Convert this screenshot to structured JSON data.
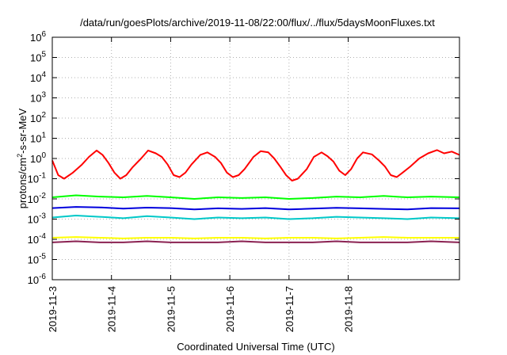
{
  "chart_data": {
    "type": "line",
    "title": "/data/run/goesPlots/archive/2019-11-08/22:00/flux/../flux/5daysMoonFluxes.txt",
    "xlabel": "Coordinated Universal Time (UTC)",
    "ylabel": "protons/cm²-s-sr-MeV",
    "ylabel_parts": {
      "pre": "protons/cm",
      "sup": "2",
      "post": "-s-sr-MeV"
    },
    "x_range_days": [
      0,
      6.88
    ],
    "x_ticks": [
      {
        "day": 0,
        "label": "2019-11-3"
      },
      {
        "day": 1,
        "label": "2019-11-4"
      },
      {
        "day": 2,
        "label": "2019-11-5"
      },
      {
        "day": 3,
        "label": "2019-11-6"
      },
      {
        "day": 4,
        "label": "2019-11-7"
      },
      {
        "day": 5,
        "label": "2019-11-8"
      }
    ],
    "y_scale": "log",
    "ylim": [
      1e-06,
      1000000.0
    ],
    "y_ticks": [
      {
        "exp": "-6",
        "value": 1e-06
      },
      {
        "exp": "-5",
        "value": 1e-05
      },
      {
        "exp": "-4",
        "value": 0.0001
      },
      {
        "exp": "-3",
        "value": 0.001
      },
      {
        "exp": "-2",
        "value": 0.01
      },
      {
        "exp": "-1",
        "value": 0.1
      },
      {
        "exp": "0",
        "value": 1
      },
      {
        "exp": "1",
        "value": 10
      },
      {
        "exp": "2",
        "value": 100
      },
      {
        "exp": "3",
        "value": 1000
      },
      {
        "exp": "4",
        "value": 10000
      },
      {
        "exp": "5",
        "value": 100000
      },
      {
        "exp": "6",
        "value": 1000000
      }
    ],
    "grid": true,
    "series": [
      {
        "color": "#ff0000",
        "x": [
          0,
          0.1,
          0.2,
          0.35,
          0.5,
          0.62,
          0.75,
          0.85,
          0.95,
          1.05,
          1.15,
          1.25,
          1.35,
          1.5,
          1.62,
          1.75,
          1.85,
          1.95,
          2.05,
          2.15,
          2.25,
          2.35,
          2.5,
          2.62,
          2.75,
          2.85,
          2.95,
          3.05,
          3.15,
          3.25,
          3.4,
          3.52,
          3.65,
          3.75,
          3.85,
          3.95,
          4.05,
          4.15,
          4.3,
          4.42,
          4.55,
          4.65,
          4.75,
          4.85,
          4.95,
          5.05,
          5.15,
          5.25,
          5.4,
          5.52,
          5.62,
          5.72,
          5.82,
          5.92,
          6.05,
          6.2,
          6.35,
          6.5,
          6.62,
          6.75,
          6.88
        ],
        "y": [
          0.8,
          0.15,
          0.1,
          0.2,
          0.5,
          1.2,
          2.5,
          1.5,
          0.6,
          0.2,
          0.1,
          0.15,
          0.35,
          1.0,
          2.5,
          1.8,
          1.2,
          0.5,
          0.15,
          0.12,
          0.2,
          0.5,
          1.5,
          2.0,
          1.2,
          0.6,
          0.2,
          0.12,
          0.15,
          0.3,
          1.2,
          2.3,
          2.0,
          1.0,
          0.4,
          0.15,
          0.08,
          0.1,
          0.3,
          1.2,
          2.0,
          1.3,
          0.7,
          0.25,
          0.15,
          0.3,
          1.0,
          2.0,
          1.6,
          0.8,
          0.4,
          0.15,
          0.12,
          0.2,
          0.4,
          1.0,
          1.8,
          2.6,
          1.8,
          2.2,
          1.5
        ]
      },
      {
        "color": "#00ff00",
        "x": [
          0,
          0.4,
          0.8,
          1.2,
          1.6,
          2.0,
          2.4,
          2.8,
          3.2,
          3.6,
          4.0,
          4.4,
          4.8,
          5.2,
          5.6,
          6.0,
          6.4,
          6.88
        ],
        "y": [
          0.012,
          0.015,
          0.013,
          0.012,
          0.014,
          0.012,
          0.01,
          0.012,
          0.011,
          0.012,
          0.01,
          0.011,
          0.013,
          0.012,
          0.014,
          0.012,
          0.013,
          0.012
        ]
      },
      {
        "color": "#00c8c8",
        "x": [
          0,
          0.4,
          0.8,
          1.2,
          1.6,
          2.0,
          2.4,
          2.8,
          3.2,
          3.6,
          4.0,
          4.4,
          4.8,
          5.2,
          5.6,
          6.0,
          6.4,
          6.88
        ],
        "y": [
          0.0012,
          0.0015,
          0.0013,
          0.0011,
          0.0014,
          0.0012,
          0.001,
          0.0012,
          0.0011,
          0.0012,
          0.001,
          0.0011,
          0.0013,
          0.0012,
          0.0011,
          0.001,
          0.0012,
          0.0011
        ]
      },
      {
        "color": "#0000dd",
        "x": [
          0,
          0.4,
          0.8,
          1.2,
          1.6,
          2.0,
          2.4,
          2.8,
          3.2,
          3.6,
          4.0,
          4.4,
          4.8,
          5.2,
          5.6,
          6.0,
          6.4,
          6.88
        ],
        "y": [
          0.0035,
          0.004,
          0.0038,
          0.0033,
          0.0037,
          0.0035,
          0.003,
          0.0034,
          0.0032,
          0.0035,
          0.003,
          0.0033,
          0.0036,
          0.0034,
          0.0032,
          0.003,
          0.0035,
          0.0034
        ]
      },
      {
        "color": "#ffff00",
        "x": [
          0,
          0.4,
          0.8,
          1.2,
          1.6,
          2.0,
          2.4,
          2.8,
          3.2,
          3.6,
          4.0,
          4.4,
          4.8,
          5.2,
          5.6,
          6.0,
          6.4,
          6.88
        ],
        "y": [
          0.00012,
          0.00013,
          0.00012,
          0.00011,
          0.00012,
          0.00012,
          0.00011,
          0.00012,
          0.00012,
          0.00011,
          0.00012,
          0.00012,
          0.00011,
          0.00012,
          0.00013,
          0.00012,
          0.00012,
          0.00012
        ]
      },
      {
        "color": "#8b2252",
        "x": [
          0,
          0.4,
          0.8,
          1.2,
          1.6,
          2.0,
          2.4,
          2.8,
          3.2,
          3.6,
          4.0,
          4.4,
          4.8,
          5.2,
          5.6,
          6.0,
          6.4,
          6.88
        ],
        "y": [
          7e-05,
          8e-05,
          7e-05,
          7e-05,
          8e-05,
          7e-05,
          7e-05,
          7e-05,
          8e-05,
          7e-05,
          7e-05,
          7e-05,
          8e-05,
          7e-05,
          7e-05,
          7e-05,
          8e-05,
          7e-05
        ]
      }
    ]
  }
}
